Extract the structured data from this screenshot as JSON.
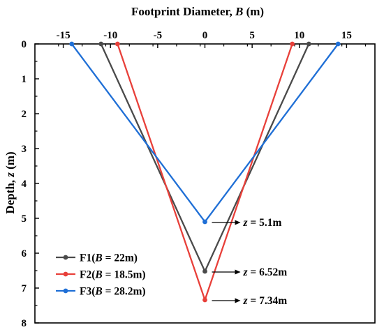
{
  "chart_data": {
    "type": "line",
    "xlabel": {
      "prefix": "Footprint Diameter, ",
      "var": "B",
      "suffix": " (m)"
    },
    "ylabel": {
      "prefix": "Depth, ",
      "var": "z",
      "suffix": " (m)"
    },
    "xlim": [
      -18,
      18
    ],
    "ylim": [
      0,
      8
    ],
    "xticks": [
      -15,
      -10,
      -5,
      0,
      5,
      10,
      15
    ],
    "yticks": [
      0,
      1,
      2,
      3,
      4,
      5,
      6,
      7,
      8
    ],
    "x_axis_position": "top",
    "y_axis_inverted": true,
    "grid": false,
    "legend_position": "bottom-left",
    "series": [
      {
        "name": "F1",
        "legend_var": "B",
        "legend_value": " = 22m",
        "color": "#4a4a4a",
        "x": [
          -11,
          0,
          11
        ],
        "y": [
          0,
          6.52,
          0
        ]
      },
      {
        "name": "F2",
        "legend_var": "B",
        "legend_value": " = 18.5m",
        "color": "#e8403a",
        "x": [
          -9.25,
          0,
          9.25
        ],
        "y": [
          0,
          7.34,
          0
        ]
      },
      {
        "name": "F3",
        "legend_var": "B",
        "legend_value": " = 28.2m",
        "color": "#1f6fd6",
        "x": [
          -14.1,
          0,
          14.1
        ],
        "y": [
          0,
          5.1,
          0
        ]
      }
    ],
    "annotations": [
      {
        "var": "z",
        "text": " = 5.1m",
        "x": 0,
        "y": 5.1
      },
      {
        "var": "z",
        "text": " = 6.52m",
        "x": 0,
        "y": 6.52
      },
      {
        "var": "z",
        "text": " = 7.34m",
        "x": 0,
        "y": 7.34
      }
    ]
  }
}
